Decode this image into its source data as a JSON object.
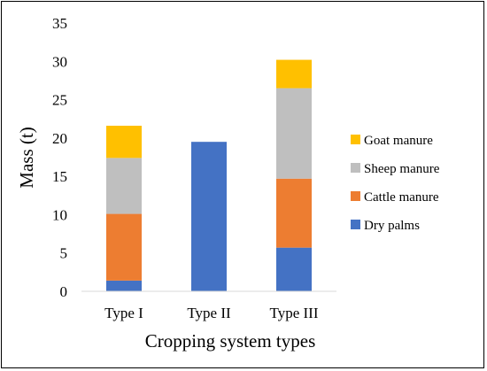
{
  "chart_data": {
    "type": "bar",
    "stacked": true,
    "categories": [
      "Type I",
      "Type II",
      "Type III"
    ],
    "series": [
      {
        "name": "Dry palms",
        "values": [
          1.4,
          19.5,
          5.7
        ],
        "color": "#4472C4"
      },
      {
        "name": "Cattle manure",
        "values": [
          8.7,
          0,
          9.0
        ],
        "color": "#ED7D31"
      },
      {
        "name": "Sheep manure",
        "values": [
          7.3,
          0,
          11.8
        ],
        "color": "#BFBFBF"
      },
      {
        "name": "Goat manure",
        "values": [
          4.2,
          0,
          3.7
        ],
        "color": "#FFC000"
      }
    ],
    "xlabel": "Cropping system types",
    "ylabel": "Mass (t)",
    "ylim": [
      0,
      35
    ],
    "yticks": [
      "0",
      "5",
      "10",
      "15",
      "20",
      "25",
      "30",
      "35"
    ],
    "grid": false,
    "legend_position": "right"
  }
}
